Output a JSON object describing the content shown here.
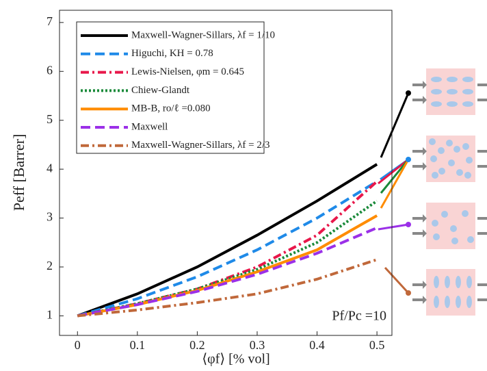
{
  "chart_data": {
    "type": "line",
    "x_label": "⟨φf⟩ [% vol]",
    "y_label": "Peff [Barrer]",
    "annotation": "Pf/Pc =10",
    "x": [
      0,
      0.1,
      0.2,
      0.3,
      0.4,
      0.5
    ],
    "xlim": [
      -0.03,
      0.525
    ],
    "ylim": [
      0.6,
      7.25
    ],
    "xticks": [
      0,
      0.1,
      0.2,
      0.3,
      0.4,
      0.5
    ],
    "yticks": [
      1,
      2,
      3,
      4,
      5,
      6,
      7
    ],
    "legend": "upper left",
    "series": [
      {
        "name": "Maxwell-Wagner-Sillars, λf = 1/10",
        "color": "#000000",
        "linestyle": "solid",
        "values": [
          1,
          1.45,
          2.0,
          2.65,
          3.35,
          4.1
        ]
      },
      {
        "name": "Higuchi, KH = 0.78",
        "color": "#1f8ae8",
        "linestyle": "dashed",
        "values": [
          1,
          1.35,
          1.8,
          2.35,
          3.0,
          3.75
        ]
      },
      {
        "name": "Lewis-Nielsen, φm = 0.645",
        "color": "#e8174a",
        "linestyle": "dashdot",
        "values": [
          1,
          1.25,
          1.55,
          2.0,
          2.65,
          3.75
        ]
      },
      {
        "name": "Chiew-Glandt",
        "color": "#1a8a3a",
        "linestyle": "dotted",
        "values": [
          1,
          1.25,
          1.55,
          1.95,
          2.5,
          3.35
        ]
      },
      {
        "name": "MB-B, ro/ℓ =0.080",
        "color": "#ff8c00",
        "linestyle": "solid",
        "values": [
          1,
          1.23,
          1.52,
          1.9,
          2.35,
          3.05
        ]
      },
      {
        "name": "Maxwell",
        "color": "#9b30e8",
        "linestyle": "dashed",
        "values": [
          1,
          1.23,
          1.5,
          1.85,
          2.28,
          2.8
        ]
      },
      {
        "name": "Maxwell-Wagner-Sillars, λf = 2/3",
        "color": "#c0683a",
        "linestyle": "dashdot",
        "values": [
          1,
          1.12,
          1.27,
          1.45,
          1.75,
          2.15
        ]
      }
    ]
  }
}
